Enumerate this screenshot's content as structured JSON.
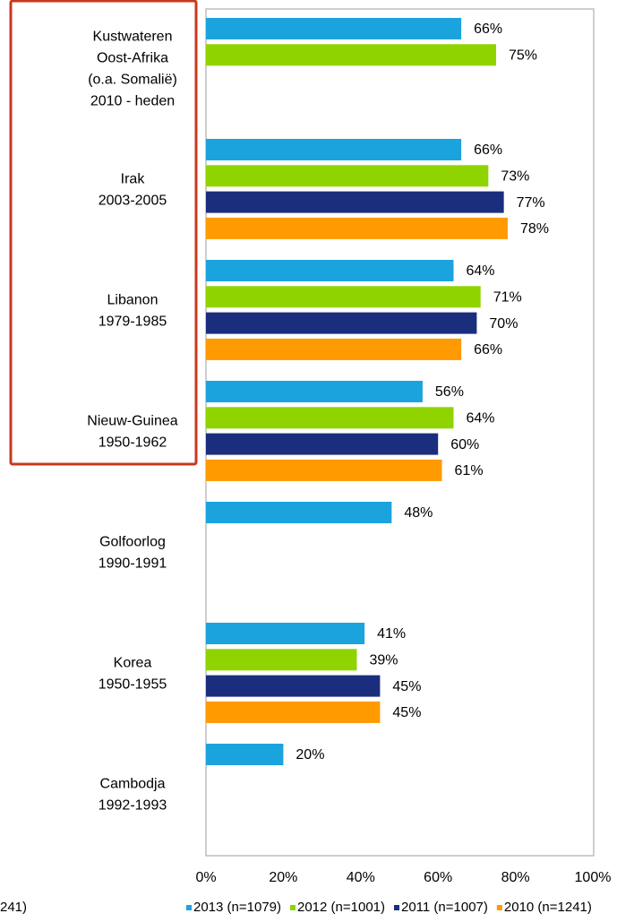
{
  "chart_data": {
    "type": "bar",
    "orientation": "horizontal",
    "categories": [
      [
        "Kustwateren",
        "Oost-Afrika",
        "(o.a. Somalië)",
        "2010 - heden"
      ],
      [
        "Irak",
        "2003-2005"
      ],
      [
        "Libanon",
        "1979-1985"
      ],
      [
        "Nieuw-Guinea",
        "1950-1962"
      ],
      [
        "Golfoorlog",
        "1990-1991"
      ],
      [
        "Korea",
        "1950-1955"
      ],
      [
        "Cambodja",
        "1992-1993"
      ]
    ],
    "series": [
      {
        "name": "2013 (n=1079)",
        "color": "#1ba3dd",
        "values": [
          66,
          66,
          64,
          56,
          48,
          41,
          20
        ],
        "value_labels": [
          "66%",
          "66%",
          "64%",
          "56%",
          "48%",
          "41%",
          "20%"
        ]
      },
      {
        "name": "2012 (n=1001)",
        "color": "#8fd400",
        "values": [
          75,
          73,
          71,
          64,
          null,
          39,
          null
        ],
        "value_labels": [
          "75%",
          "73%",
          "71%",
          "64%",
          null,
          "39%",
          null
        ]
      },
      {
        "name": "2011 (n=1007)",
        "color": "#1b2e7d",
        "values": [
          null,
          77,
          70,
          60,
          null,
          45,
          null
        ],
        "value_labels": [
          null,
          "77%",
          "70%",
          "60%",
          null,
          "45%",
          null
        ]
      },
      {
        "name": "2010 (n=1241)",
        "color": "#ff9a00",
        "values": [
          null,
          78,
          66,
          61,
          null,
          45,
          null
        ],
        "value_labels": [
          null,
          "78%",
          "66%",
          "61%",
          null,
          "45%",
          null
        ]
      }
    ],
    "xlim": [
      0,
      100
    ],
    "xticks": [
      {
        "value": 0,
        "label": "0%"
      },
      {
        "value": 20,
        "label": "20%"
      },
      {
        "value": 40,
        "label": "40%"
      },
      {
        "value": 60,
        "label": "60%"
      },
      {
        "value": 80,
        "label": "80%"
      },
      {
        "value": 100,
        "label": "100%"
      }
    ],
    "legend": "bottom",
    "legend_fragment": "241)"
  }
}
